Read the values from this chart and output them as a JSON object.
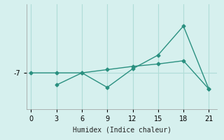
{
  "xlabel": "Humidex (Indice chaleur)",
  "ylabel": "",
  "background_color": "#d6f0ee",
  "line_color": "#2a9080",
  "grid_color": "#b0ddd8",
  "line1_x": [
    3,
    6,
    9,
    12,
    15,
    18,
    21
  ],
  "line1_y": [
    -8.5,
    -7.0,
    -8.8,
    -6.5,
    -4.8,
    -1.2,
    -9.0
  ],
  "line2_x": [
    0,
    3,
    6,
    9,
    12,
    15,
    18,
    21
  ],
  "line2_y": [
    -7.0,
    -7.0,
    -7.0,
    -6.6,
    -6.2,
    -5.9,
    -5.5,
    -9.0
  ],
  "yticks": [
    -7
  ],
  "xticks": [
    0,
    3,
    6,
    9,
    12,
    15,
    18,
    21
  ],
  "xlim": [
    -0.5,
    22
  ],
  "ylim": [
    -11.5,
    1.5
  ]
}
